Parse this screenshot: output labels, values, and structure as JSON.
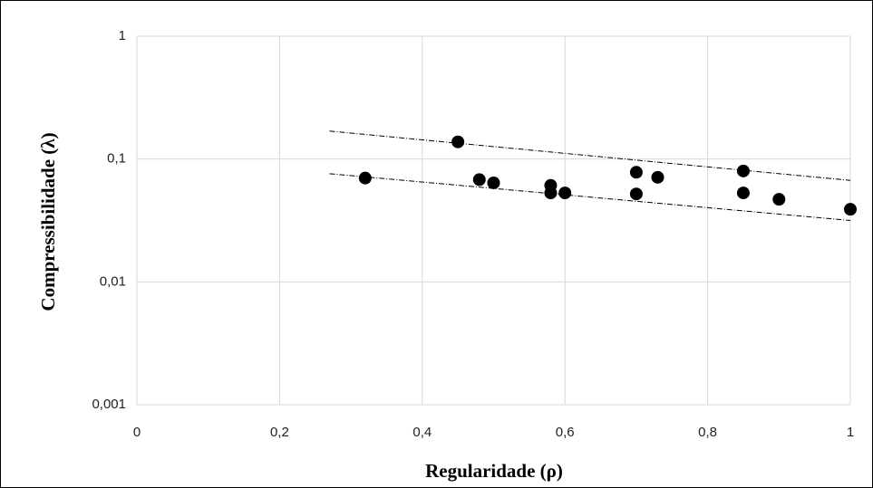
{
  "chart_data": {
    "type": "scatter",
    "x_label": "Regularidade (ρ)",
    "y_label": "Compressibilidade (λ)",
    "series": [
      {
        "color": "#000000",
        "x": [
          0.32,
          0.45,
          0.48,
          0.5,
          0.58,
          0.58,
          0.6,
          0.7,
          0.7,
          0.73,
          0.85,
          0.85,
          0.9,
          1.0
        ],
        "values": [
          0.07,
          0.138,
          0.068,
          0.064,
          0.061,
          0.053,
          0.053,
          0.078,
          0.052,
          0.071,
          0.08,
          0.053,
          0.047,
          0.039
        ]
      }
    ],
    "trendlines": [
      {
        "color": "#000000",
        "x": [
          0.27,
          1.0
        ],
        "values": [
          0.169,
          0.067
        ]
      },
      {
        "color": "#000000",
        "x": [
          0.27,
          1.0
        ],
        "values": [
          0.076,
          0.0316
        ]
      }
    ],
    "xlim": [
      0,
      1
    ],
    "xticks": [
      0,
      {
        "value": 0.2,
        "label": "0,2"
      },
      {
        "value": 0.4,
        "label": "0,4"
      },
      {
        "value": 0.6,
        "label": "0,6"
      },
      {
        "value": 0.8,
        "label": "0,8"
      },
      1
    ],
    "ylim": [
      0.001,
      1
    ],
    "yticks": [
      {
        "value": 0.001,
        "label": "0,001"
      },
      {
        "value": 0.01,
        "label": "0,01"
      },
      {
        "value": 0.1,
        "label": "0,1"
      },
      1
    ],
    "y_log": true,
    "grid": true
  }
}
